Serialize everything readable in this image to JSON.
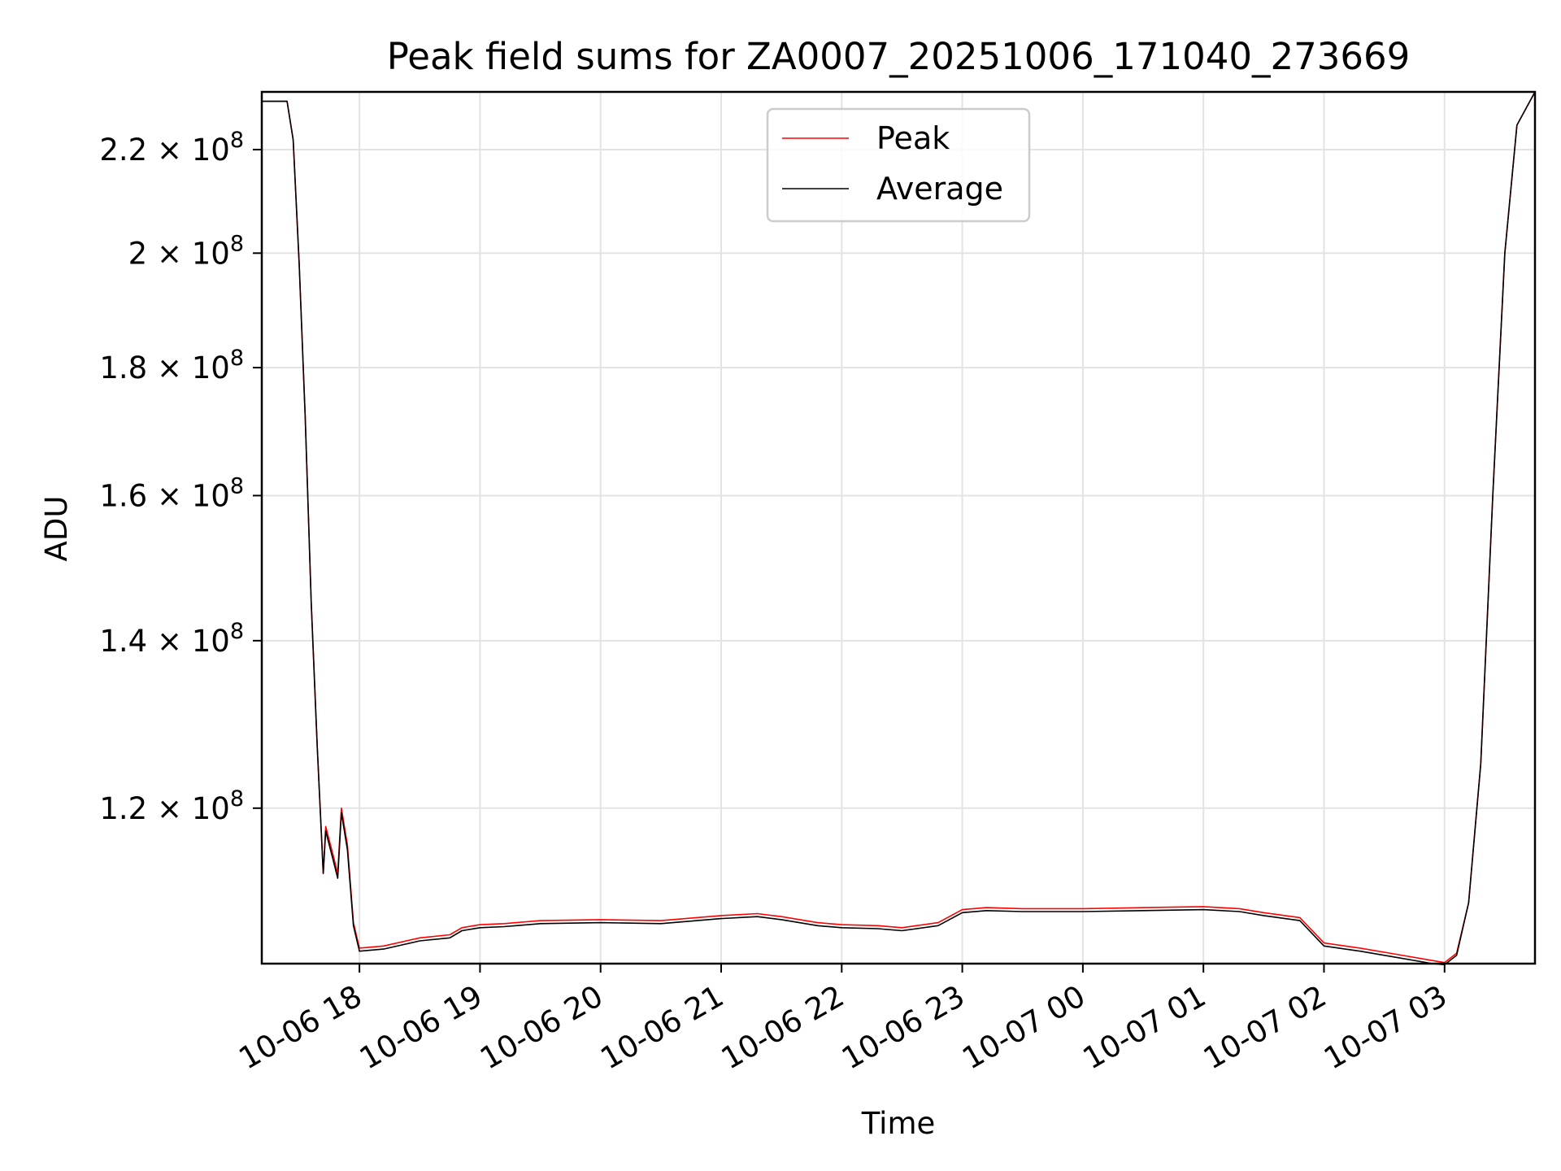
{
  "chart_data": {
    "type": "line",
    "title": "Peak field sums for ZA0007_20251006_171040_273669",
    "xlabel": "Time",
    "ylabel": "ADU",
    "yscale": "log",
    "ylim": [
      104000000,
      232000000
    ],
    "xlim_hours": [
      17.19,
      27.75
    ],
    "x_ticks": [
      {
        "hour": 18,
        "label": "10-06 18"
      },
      {
        "hour": 19,
        "label": "10-06 19"
      },
      {
        "hour": 20,
        "label": "10-06 20"
      },
      {
        "hour": 21,
        "label": "10-06 21"
      },
      {
        "hour": 22,
        "label": "10-06 22"
      },
      {
        "hour": 23,
        "label": "10-06 23"
      },
      {
        "hour": 24,
        "label": "10-07 00"
      },
      {
        "hour": 25,
        "label": "10-07 01"
      },
      {
        "hour": 26,
        "label": "10-07 02"
      },
      {
        "hour": 27,
        "label": "10-07 03"
      }
    ],
    "y_ticks": [
      {
        "value": 120000000,
        "mantissa": "1.2",
        "exponent": "8"
      },
      {
        "value": 140000000,
        "mantissa": "1.4",
        "exponent": "8"
      },
      {
        "value": 160000000,
        "mantissa": "1.6",
        "exponent": "8"
      },
      {
        "value": 180000000,
        "mantissa": "1.8",
        "exponent": "8"
      },
      {
        "value": 200000000,
        "mantissa": "2",
        "exponent": "8"
      },
      {
        "value": 220000000,
        "mantissa": "2.2",
        "exponent": "8"
      }
    ],
    "grid": true,
    "legend_position": "top-center",
    "series": [
      {
        "name": "Peak",
        "color": "#ff0000",
        "x_hours": [
          17.19,
          17.4,
          17.45,
          17.5,
          17.55,
          17.6,
          17.65,
          17.7,
          17.72,
          17.78,
          17.82,
          17.85,
          17.9,
          17.95,
          18.0,
          18.2,
          18.5,
          18.75,
          18.85,
          19.0,
          19.2,
          19.5,
          20.0,
          20.5,
          21.0,
          21.3,
          21.5,
          21.8,
          22.0,
          22.3,
          22.5,
          22.8,
          23.0,
          23.2,
          23.5,
          24.0,
          24.5,
          25.0,
          25.3,
          25.5,
          25.8,
          26.0,
          26.3,
          26.6,
          26.9,
          27.0,
          27.1,
          27.2,
          27.3,
          27.4,
          27.5,
          27.6,
          27.75
        ],
        "values": [
          230000000,
          230000000,
          222000000,
          198000000,
          172000000,
          145000000,
          127000000,
          113000000,
          118000000,
          115000000,
          113000000,
          120000000,
          116000000,
          108000000,
          105500000,
          105700000,
          106500000,
          106800000,
          107500000,
          107800000,
          107900000,
          108200000,
          108300000,
          108200000,
          108700000,
          108900000,
          108600000,
          108000000,
          107800000,
          107700000,
          107500000,
          108000000,
          109300000,
          109500000,
          109400000,
          109400000,
          109500000,
          109600000,
          109400000,
          109000000,
          108500000,
          106000000,
          105500000,
          104900000,
          104300000,
          104100000,
          105000000,
          110000000,
          125000000,
          160000000,
          200000000,
          225000000,
          232000000
        ]
      },
      {
        "name": "Average",
        "color": "#000000",
        "x_hours": [
          17.19,
          17.4,
          17.45,
          17.5,
          17.55,
          17.6,
          17.65,
          17.7,
          17.72,
          17.78,
          17.82,
          17.85,
          17.9,
          17.95,
          18.0,
          18.2,
          18.5,
          18.75,
          18.85,
          19.0,
          19.2,
          19.5,
          20.0,
          20.5,
          21.0,
          21.3,
          21.5,
          21.8,
          22.0,
          22.3,
          22.5,
          22.8,
          23.0,
          23.2,
          23.5,
          24.0,
          24.5,
          25.0,
          25.3,
          25.5,
          25.8,
          26.0,
          26.3,
          26.6,
          26.9,
          27.0,
          27.1,
          27.2,
          27.3,
          27.4,
          27.5,
          27.6,
          27.75
        ],
        "values": [
          230000000,
          230000000,
          222000000,
          198000000,
          172000000,
          145000000,
          127000000,
          113000000,
          117500000,
          114500000,
          112500000,
          119500000,
          115500000,
          107700000,
          105200000,
          105400000,
          106200000,
          106500000,
          107200000,
          107500000,
          107600000,
          107900000,
          108000000,
          107900000,
          108400000,
          108600000,
          108300000,
          107700000,
          107500000,
          107400000,
          107200000,
          107700000,
          109000000,
          109200000,
          109100000,
          109100000,
          109200000,
          109300000,
          109100000,
          108700000,
          108200000,
          105700000,
          105200000,
          104600000,
          104000000,
          103900000,
          104800000,
          110000000,
          125000000,
          160000000,
          200000000,
          225000000,
          232000000
        ]
      }
    ]
  }
}
